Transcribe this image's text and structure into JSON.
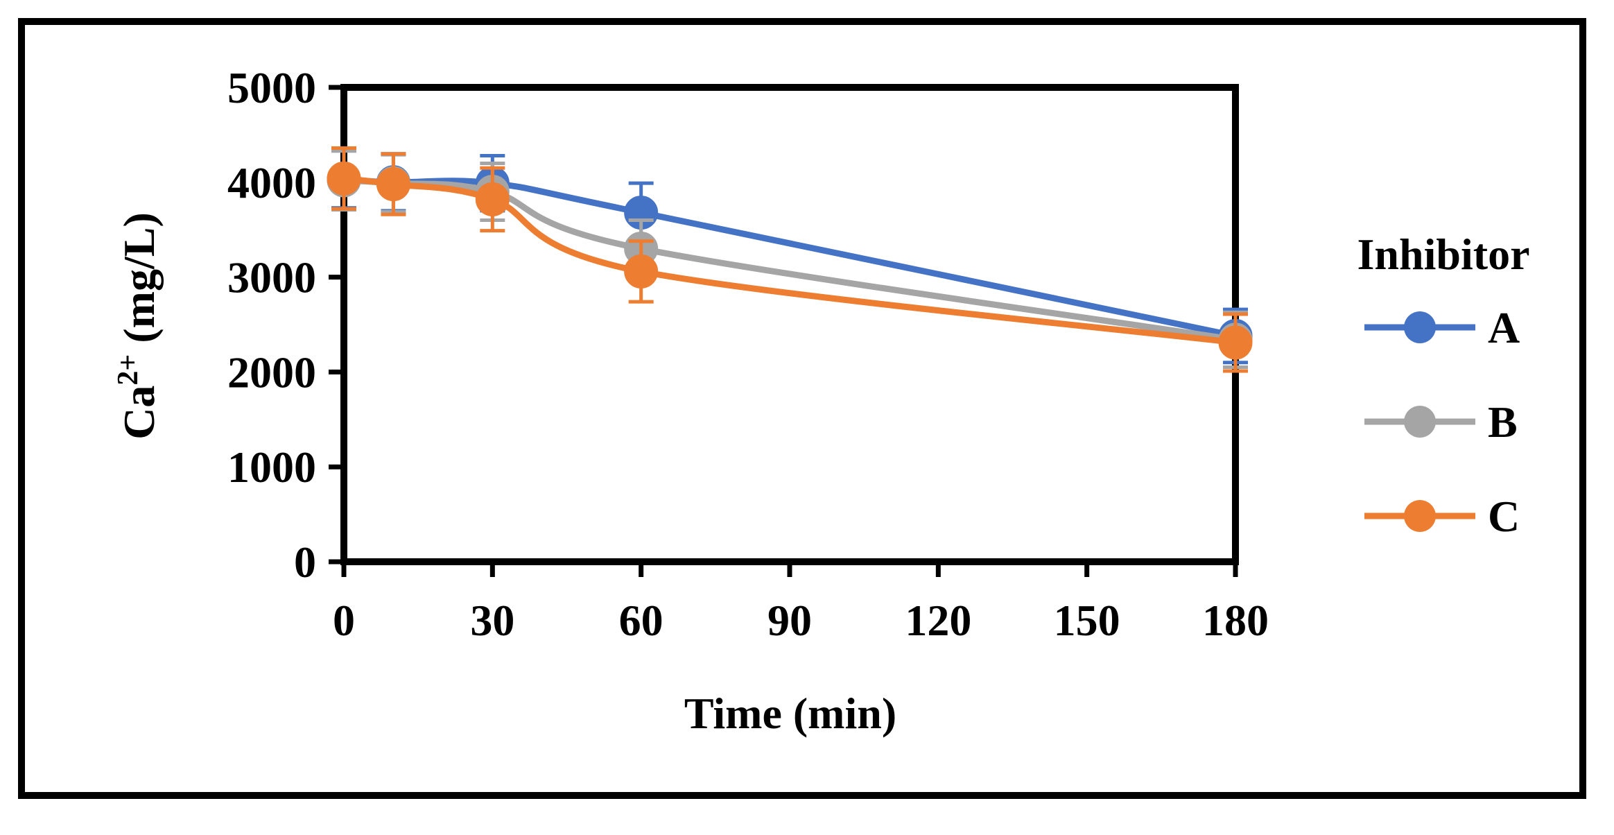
{
  "chart_data": {
    "type": "line",
    "title": "",
    "xlabel": "Time (min)",
    "ylabel_main": "Ca",
    "ylabel_sup": "2+",
    "ylabel_unit": " (mg/L)",
    "xlim": [
      0,
      180
    ],
    "ylim": [
      0,
      5000
    ],
    "x_ticks": [
      0,
      30,
      60,
      90,
      120,
      150,
      180
    ],
    "y_ticks": [
      0,
      1000,
      2000,
      3000,
      4000,
      5000
    ],
    "grid": false,
    "legend_title": "Inhibitor",
    "legend_position": "right",
    "smooth": true,
    "series": [
      {
        "name": "A",
        "color": "#4472C4",
        "x": [
          0,
          10,
          30,
          60,
          180
        ],
        "values": [
          4030,
          4000,
          3990,
          3680,
          2380
        ],
        "errors": [
          300,
          300,
          290,
          310,
          280
        ]
      },
      {
        "name": "B",
        "color": "#A5A5A5",
        "x": [
          0,
          10,
          30,
          60,
          180
        ],
        "values": [
          4020,
          3990,
          3900,
          3300,
          2340
        ],
        "errors": [
          310,
          300,
          300,
          300,
          290
        ]
      },
      {
        "name": "C",
        "color": "#ED7D31",
        "x": [
          0,
          10,
          30,
          60,
          180
        ],
        "values": [
          4040,
          3980,
          3820,
          3060,
          2310
        ],
        "errors": [
          320,
          320,
          330,
          320,
          300
        ]
      }
    ]
  }
}
